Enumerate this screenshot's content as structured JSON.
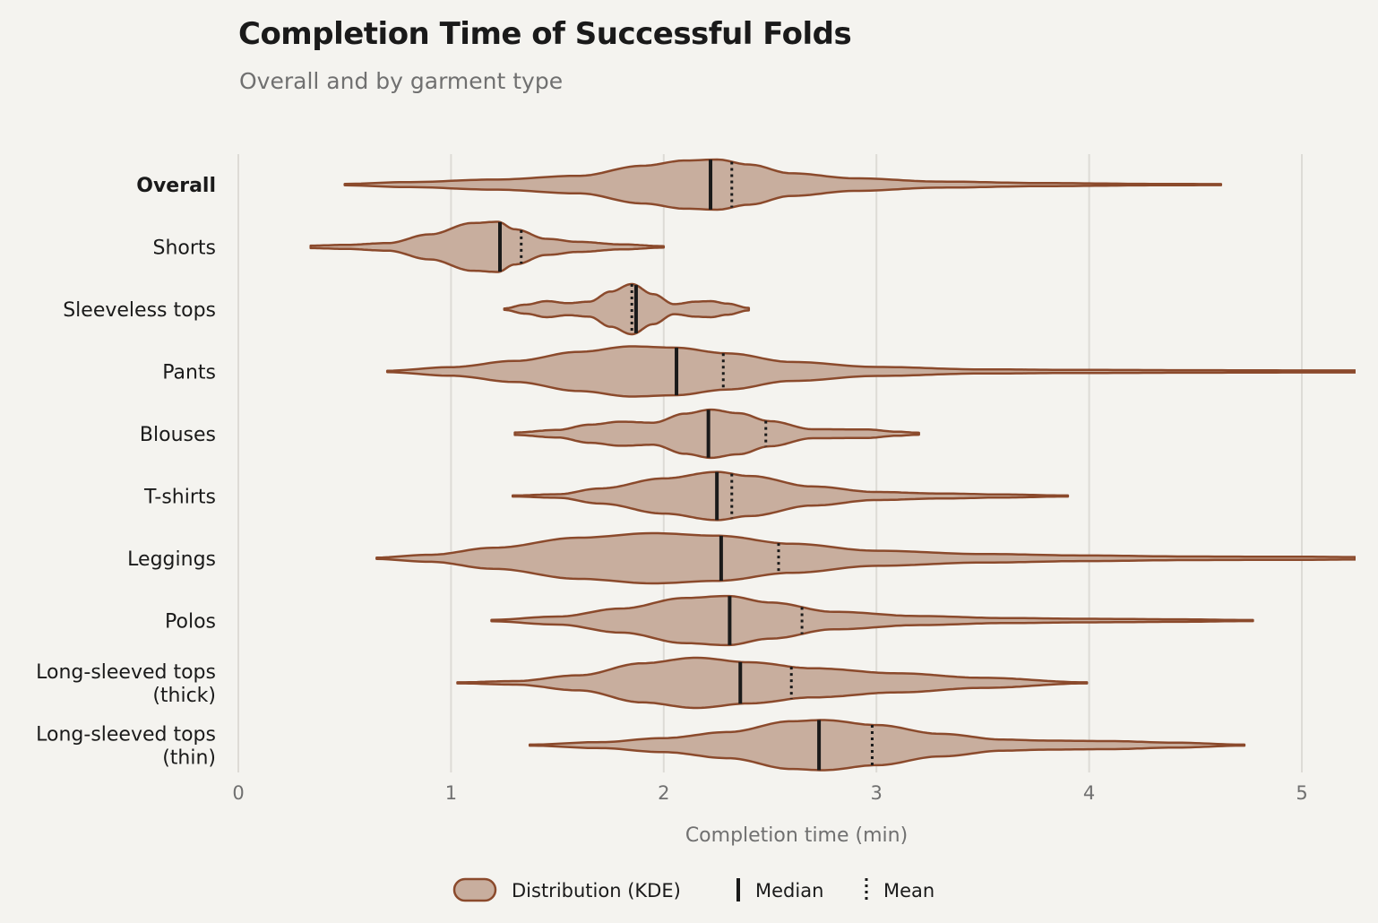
{
  "title": "Completion Time of Successful Folds",
  "subtitle": "Overall and by garment type",
  "chart_data": {
    "type": "violin",
    "orientation": "horizontal",
    "xlabel": "Completion time (min)",
    "xlim": [
      0,
      5.25
    ],
    "xticks": [
      0,
      1,
      2,
      3,
      4,
      5
    ],
    "grid": true,
    "legend_position": "bottom-center",
    "legend": [
      {
        "kind": "distribution",
        "label": "Distribution (KDE)"
      },
      {
        "kind": "median",
        "label": "Median"
      },
      {
        "kind": "mean",
        "label": "Mean"
      }
    ],
    "colors": {
      "fill": "#c8ae9e",
      "stroke": "#8b4a2c",
      "median": "#1a1a1a",
      "mean": "#1a1a1a",
      "grid": "#dddbd6"
    },
    "categories": [
      {
        "label": [
          "Overall"
        ],
        "bold": true,
        "min": 0.5,
        "max": 4.62,
        "median": 2.22,
        "mean": 2.32,
        "density": [
          [
            0.5,
            0.03
          ],
          [
            0.8,
            0.1
          ],
          [
            1.2,
            0.2
          ],
          [
            1.6,
            0.35
          ],
          [
            1.9,
            0.75
          ],
          [
            2.1,
            0.96
          ],
          [
            2.25,
            1.0
          ],
          [
            2.4,
            0.8
          ],
          [
            2.6,
            0.45
          ],
          [
            2.9,
            0.25
          ],
          [
            3.3,
            0.12
          ],
          [
            3.8,
            0.06
          ],
          [
            4.3,
            0.03
          ],
          [
            4.62,
            0.02
          ]
        ]
      },
      {
        "label": [
          "Shorts"
        ],
        "bold": false,
        "min": 0.34,
        "max": 2.0,
        "median": 1.23,
        "mean": 1.33,
        "density": [
          [
            0.34,
            0.05
          ],
          [
            0.5,
            0.08
          ],
          [
            0.7,
            0.15
          ],
          [
            0.9,
            0.5
          ],
          [
            1.1,
            0.95
          ],
          [
            1.22,
            1.0
          ],
          [
            1.3,
            0.7
          ],
          [
            1.45,
            0.32
          ],
          [
            1.6,
            0.2
          ],
          [
            1.8,
            0.1
          ],
          [
            2.0,
            0.03
          ]
        ]
      },
      {
        "label": [
          "Sleeveless tops"
        ],
        "bold": false,
        "min": 1.25,
        "max": 2.4,
        "median": 1.87,
        "mean": 1.85,
        "density": [
          [
            1.25,
            0.03
          ],
          [
            1.35,
            0.18
          ],
          [
            1.45,
            0.32
          ],
          [
            1.55,
            0.24
          ],
          [
            1.65,
            0.3
          ],
          [
            1.75,
            0.7
          ],
          [
            1.85,
            1.0
          ],
          [
            1.95,
            0.6
          ],
          [
            2.05,
            0.2
          ],
          [
            2.15,
            0.3
          ],
          [
            2.22,
            0.32
          ],
          [
            2.3,
            0.22
          ],
          [
            2.4,
            0.05
          ]
        ]
      },
      {
        "label": [
          "Pants"
        ],
        "bold": false,
        "min": 0.7,
        "max": 5.25,
        "median": 2.06,
        "mean": 2.28,
        "density": [
          [
            0.7,
            0.03
          ],
          [
            1.0,
            0.17
          ],
          [
            1.3,
            0.42
          ],
          [
            1.6,
            0.78
          ],
          [
            1.85,
            1.0
          ],
          [
            2.05,
            0.95
          ],
          [
            2.3,
            0.72
          ],
          [
            2.6,
            0.38
          ],
          [
            3.0,
            0.18
          ],
          [
            3.5,
            0.08
          ],
          [
            4.0,
            0.06
          ],
          [
            4.5,
            0.05
          ],
          [
            5.0,
            0.04
          ],
          [
            5.25,
            0.04
          ]
        ]
      },
      {
        "label": [
          "Blouses"
        ],
        "bold": false,
        "min": 1.3,
        "max": 3.2,
        "median": 2.21,
        "mean": 2.48,
        "density": [
          [
            1.3,
            0.05
          ],
          [
            1.5,
            0.15
          ],
          [
            1.65,
            0.36
          ],
          [
            1.8,
            0.48
          ],
          [
            1.95,
            0.44
          ],
          [
            2.1,
            0.8
          ],
          [
            2.22,
            0.96
          ],
          [
            2.35,
            0.82
          ],
          [
            2.5,
            0.5
          ],
          [
            2.7,
            0.18
          ],
          [
            2.95,
            0.17
          ],
          [
            3.1,
            0.08
          ],
          [
            3.2,
            0.04
          ]
        ]
      },
      {
        "label": [
          "T-shirts"
        ],
        "bold": false,
        "min": 1.29,
        "max": 3.9,
        "median": 2.25,
        "mean": 2.32,
        "density": [
          [
            1.29,
            0.02
          ],
          [
            1.5,
            0.07
          ],
          [
            1.7,
            0.3
          ],
          [
            2.0,
            0.7
          ],
          [
            2.25,
            0.96
          ],
          [
            2.4,
            0.8
          ],
          [
            2.7,
            0.38
          ],
          [
            3.0,
            0.16
          ],
          [
            3.3,
            0.1
          ],
          [
            3.6,
            0.06
          ],
          [
            3.9,
            0.02
          ]
        ]
      },
      {
        "label": [
          "Leggings"
        ],
        "bold": false,
        "min": 0.65,
        "max": 5.25,
        "median": 2.27,
        "mean": 2.54,
        "density": [
          [
            0.65,
            0.03
          ],
          [
            0.9,
            0.14
          ],
          [
            1.2,
            0.42
          ],
          [
            1.6,
            0.82
          ],
          [
            1.95,
            1.0
          ],
          [
            2.25,
            0.9
          ],
          [
            2.6,
            0.58
          ],
          [
            3.0,
            0.3
          ],
          [
            3.5,
            0.17
          ],
          [
            4.0,
            0.11
          ],
          [
            4.5,
            0.07
          ],
          [
            5.0,
            0.06
          ],
          [
            5.25,
            0.05
          ]
        ]
      },
      {
        "label": [
          "Polos"
        ],
        "bold": false,
        "min": 1.19,
        "max": 4.77,
        "median": 2.31,
        "mean": 2.65,
        "density": [
          [
            1.19,
            0.03
          ],
          [
            1.5,
            0.16
          ],
          [
            1.8,
            0.48
          ],
          [
            2.1,
            0.9
          ],
          [
            2.3,
            0.98
          ],
          [
            2.5,
            0.72
          ],
          [
            2.8,
            0.35
          ],
          [
            3.2,
            0.18
          ],
          [
            3.6,
            0.1
          ],
          [
            4.0,
            0.07
          ],
          [
            4.4,
            0.05
          ],
          [
            4.77,
            0.02
          ]
        ]
      },
      {
        "label": [
          "Long-sleeved tops",
          "(thick)"
        ],
        "bold": false,
        "min": 1.03,
        "max": 3.99,
        "median": 2.36,
        "mean": 2.6,
        "density": [
          [
            1.03,
            0.02
          ],
          [
            1.3,
            0.07
          ],
          [
            1.6,
            0.3
          ],
          [
            1.9,
            0.78
          ],
          [
            2.15,
            1.0
          ],
          [
            2.4,
            0.82
          ],
          [
            2.7,
            0.58
          ],
          [
            3.1,
            0.38
          ],
          [
            3.5,
            0.2
          ],
          [
            3.99,
            0.02
          ]
        ]
      },
      {
        "label": [
          "Long-sleeved tops",
          "(thin)"
        ],
        "bold": false,
        "min": 1.37,
        "max": 4.73,
        "median": 2.73,
        "mean": 2.98,
        "density": [
          [
            1.37,
            0.02
          ],
          [
            1.7,
            0.12
          ],
          [
            2.0,
            0.28
          ],
          [
            2.3,
            0.52
          ],
          [
            2.6,
            0.95
          ],
          [
            2.75,
            1.0
          ],
          [
            3.0,
            0.8
          ],
          [
            3.3,
            0.45
          ],
          [
            3.6,
            0.22
          ],
          [
            3.8,
            0.18
          ],
          [
            4.1,
            0.16
          ],
          [
            4.4,
            0.1
          ],
          [
            4.73,
            0.02
          ]
        ]
      }
    ]
  }
}
